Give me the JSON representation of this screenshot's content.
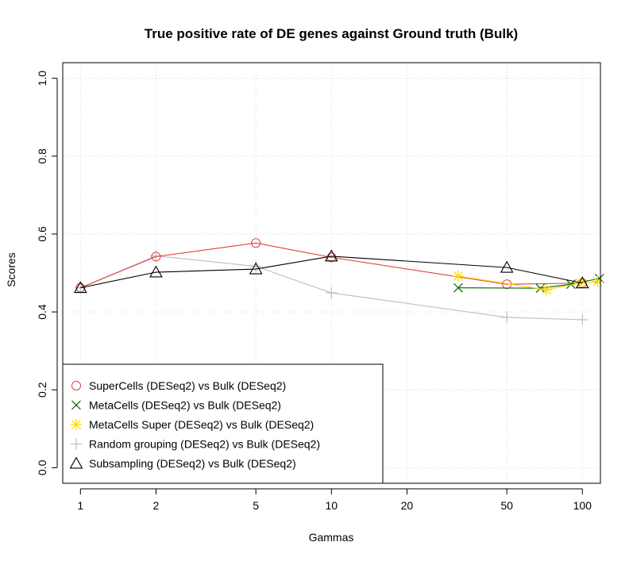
{
  "chart_data": {
    "type": "line",
    "title": "True positive rate of DE genes against Ground truth (Bulk)",
    "xlabel": "Gammas",
    "ylabel": "Scores",
    "x_scale": "log",
    "xlim": [
      0.85,
      118
    ],
    "ylim": [
      -0.04,
      1.04
    ],
    "x_ticks": [
      1,
      2,
      5,
      10,
      20,
      50,
      100
    ],
    "x_tick_labels": [
      "1",
      "2",
      "5",
      "10",
      "20",
      "50",
      "100"
    ],
    "y_ticks": [
      0.0,
      0.2,
      0.4,
      0.6,
      0.8,
      1.0
    ],
    "y_tick_labels": [
      "0.0",
      "0.2",
      "0.4",
      "0.6",
      "0.8",
      "1.0"
    ],
    "grid": true,
    "legend_position": "bottom-left",
    "series": [
      {
        "name": "SuperCells (DESeq2) vs Bulk (DESeq2)",
        "color": "#e0403c",
        "marker": "circle",
        "x": [
          1,
          2,
          5,
          10,
          50,
          100
        ],
        "y": [
          0.462,
          0.542,
          0.577,
          0.54,
          0.471,
          0.474
        ]
      },
      {
        "name": "MetaCells (DESeq2) vs Bulk (DESeq2)",
        "color": "#006400",
        "marker": "x",
        "x": [
          32,
          68,
          90,
          117
        ],
        "y": [
          0.462,
          0.461,
          0.471,
          0.486
        ]
      },
      {
        "name": "MetaCells Super (DESeq2) vs Bulk (DESeq2)",
        "color": "#ffd700",
        "marker": "asterisk",
        "x": [
          32,
          72,
          98,
          115
        ],
        "y": [
          0.492,
          0.457,
          0.474,
          0.478
        ]
      },
      {
        "name": "Random grouping (DESeq2) vs Bulk (DESeq2)",
        "color": "#bebebe",
        "marker": "plus",
        "x": [
          1,
          2,
          5,
          10,
          50,
          100
        ],
        "y": [
          0.462,
          0.544,
          0.517,
          0.449,
          0.386,
          0.38
        ]
      },
      {
        "name": "Subsampling (DESeq2) vs Bulk (DESeq2)",
        "color": "#000000",
        "marker": "triangle",
        "x": [
          1,
          2,
          5,
          10,
          50,
          100
        ],
        "y": [
          0.462,
          0.502,
          0.51,
          0.543,
          0.514,
          0.474
        ]
      }
    ]
  }
}
